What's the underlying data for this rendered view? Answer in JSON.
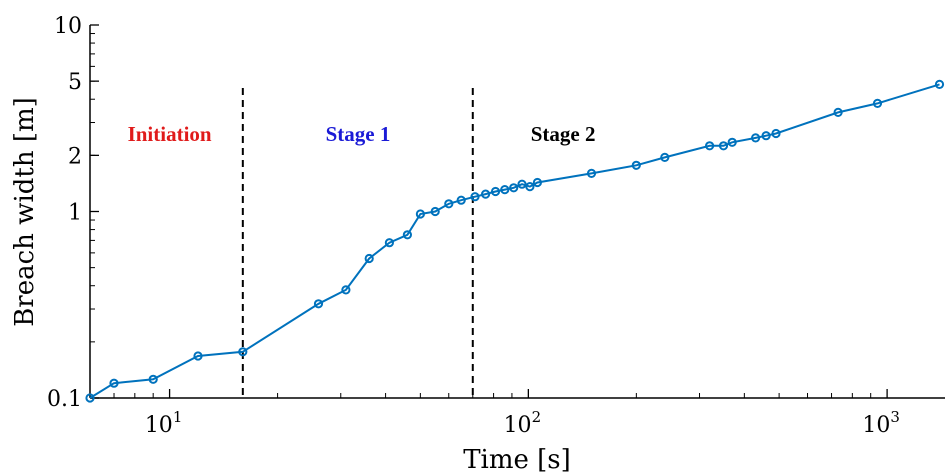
{
  "chart_data": {
    "type": "line",
    "xlabel": "Time [s]",
    "ylabel": "Breach width [m]",
    "x_scale": "log",
    "y_scale": "log",
    "xlim": [
      6,
      1450
    ],
    "ylim": [
      0.1,
      10
    ],
    "x_ticks": [
      {
        "value": 10,
        "base": "10",
        "exp": "1"
      },
      {
        "value": 100,
        "base": "10",
        "exp": "2"
      },
      {
        "value": 1000,
        "base": "10",
        "exp": "3"
      }
    ],
    "y_ticks": [
      {
        "value": 0.1,
        "label": "0.1"
      },
      {
        "value": 1,
        "label": "1"
      },
      {
        "value": 2,
        "label": "2"
      },
      {
        "value": 5,
        "label": "5"
      },
      {
        "value": 10,
        "label": "10"
      }
    ],
    "series": [
      {
        "color": "#0072BD",
        "marker": "circle",
        "x": [
          6,
          7,
          9,
          12,
          16,
          26,
          31,
          36,
          41,
          46,
          50,
          55,
          60,
          65,
          71,
          76,
          81,
          86,
          91,
          96,
          101,
          106,
          150,
          200,
          240,
          320,
          350,
          370,
          430,
          460,
          490,
          730,
          940,
          1400
        ],
        "y": [
          0.1,
          0.12,
          0.126,
          0.168,
          0.177,
          0.32,
          0.38,
          0.56,
          0.68,
          0.75,
          0.97,
          1.0,
          1.1,
          1.15,
          1.2,
          1.24,
          1.28,
          1.31,
          1.34,
          1.4,
          1.36,
          1.43,
          1.6,
          1.77,
          1.95,
          2.25,
          2.25,
          2.35,
          2.48,
          2.55,
          2.62,
          3.4,
          3.8,
          4.8
        ]
      }
    ],
    "vlines": [
      16,
      70
    ],
    "regions": [
      {
        "label": "Initiation",
        "color": "#e01b1b",
        "x": 10
      },
      {
        "label": "Stage 1",
        "color": "#1a1ad6",
        "x": 33.5
      },
      {
        "label": "Stage 2",
        "color": "#000000",
        "x": 125
      }
    ]
  }
}
